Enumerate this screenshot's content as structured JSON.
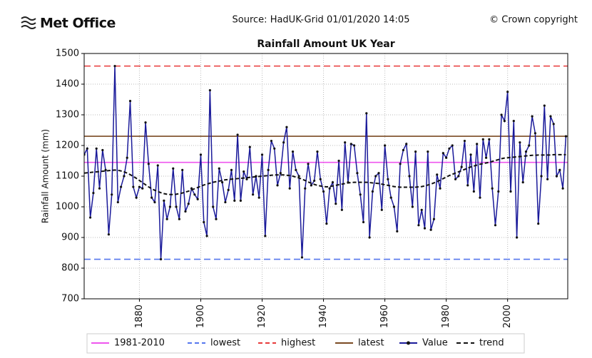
{
  "header": {
    "logo": "Met Office",
    "source": "Source: HadUK-Grid 01/01/2020 14:05",
    "copyright": "© Crown copyright"
  },
  "chart_data": {
    "type": "line",
    "title": "Rainfall Amount UK Year",
    "y_label": "Rainfall Amount (mm)",
    "xlim": [
      1862,
      2019.6
    ],
    "xticks": [
      1880,
      1900,
      1920,
      1940,
      1960,
      1980,
      2000
    ],
    "ylim": [
      700,
      1500
    ],
    "yticks": [
      700,
      800,
      900,
      1000,
      1100,
      1200,
      1300,
      1400,
      1500
    ],
    "grid": true,
    "legend": "bottom",
    "x": [
      1862,
      1863,
      1864,
      1865,
      1866,
      1867,
      1868,
      1869,
      1870,
      1871,
      1872,
      1873,
      1874,
      1875,
      1876,
      1877,
      1878,
      1879,
      1880,
      1881,
      1882,
      1883,
      1884,
      1885,
      1886,
      1887,
      1888,
      1889,
      1890,
      1891,
      1892,
      1893,
      1894,
      1895,
      1896,
      1897,
      1898,
      1899,
      1900,
      1901,
      1902,
      1903,
      1904,
      1905,
      1906,
      1907,
      1908,
      1909,
      1910,
      1911,
      1912,
      1913,
      1914,
      1915,
      1916,
      1917,
      1918,
      1919,
      1920,
      1921,
      1922,
      1923,
      1924,
      1925,
      1926,
      1927,
      1928,
      1929,
      1930,
      1931,
      1932,
      1933,
      1934,
      1935,
      1936,
      1937,
      1938,
      1939,
      1940,
      1941,
      1942,
      1943,
      1944,
      1945,
      1946,
      1947,
      1948,
      1949,
      1950,
      1951,
      1952,
      1953,
      1954,
      1955,
      1956,
      1957,
      1958,
      1959,
      1960,
      1961,
      1962,
      1963,
      1964,
      1965,
      1966,
      1967,
      1968,
      1969,
      1970,
      1971,
      1972,
      1973,
      1974,
      1975,
      1976,
      1977,
      1978,
      1979,
      1980,
      1981,
      1982,
      1983,
      1984,
      1985,
      1986,
      1987,
      1988,
      1989,
      1990,
      1991,
      1992,
      1993,
      1994,
      1995,
      1996,
      1997,
      1998,
      1999,
      2000,
      2001,
      2002,
      2003,
      2004,
      2005,
      2006,
      2007,
      2008,
      2009,
      2010,
      2011,
      2012,
      2013,
      2014,
      2015,
      2016,
      2017,
      2018,
      2019
    ],
    "series": [
      {
        "name": "1981-2010",
        "color": "#ee55ee",
        "value": 1145,
        "kind": "hline",
        "dash": false
      },
      {
        "name": "lowest",
        "color": "#5577ee",
        "value": 829,
        "kind": "hline",
        "dash": true
      },
      {
        "name": "highest",
        "color": "#e83a3a",
        "value": 1459,
        "kind": "hline",
        "dash": true
      },
      {
        "name": "latest",
        "color": "#7a4a22",
        "value": 1230,
        "kind": "hline",
        "dash": false
      },
      {
        "name": "Value",
        "color": "#1a1a9a",
        "kind": "line",
        "dash": false,
        "markers": true,
        "values": [
          1170,
          1190,
          965,
          1045,
          1190,
          1060,
          1185,
          1120,
          910,
          1040,
          1459,
          1015,
          1065,
          1100,
          1160,
          1345,
          1065,
          1030,
          1065,
          1060,
          1275,
          1140,
          1030,
          1015,
          1135,
          829,
          1020,
          960,
          1000,
          1125,
          1000,
          960,
          1120,
          985,
          1010,
          1060,
          1040,
          1025,
          1170,
          950,
          905,
          1380,
          1000,
          960,
          1125,
          1080,
          1015,
          1055,
          1120,
          1020,
          1235,
          1020,
          1115,
          1090,
          1195,
          1040,
          1100,
          1030,
          1170,
          905,
          1120,
          1215,
          1190,
          1070,
          1110,
          1210,
          1260,
          1060,
          1180,
          1120,
          1100,
          835,
          1060,
          1140,
          1070,
          1085,
          1180,
          1090,
          1050,
          945,
          1060,
          1080,
          1010,
          1150,
          990,
          1210,
          1080,
          1205,
          1200,
          1110,
          1040,
          950,
          1305,
          900,
          1050,
          1100,
          1110,
          990,
          1200,
          1090,
          1030,
          1000,
          920,
          1140,
          1185,
          1205,
          1100,
          1000,
          1180,
          940,
          990,
          930,
          1180,
          925,
          960,
          1105,
          1060,
          1175,
          1160,
          1190,
          1200,
          1090,
          1100,
          1130,
          1215,
          1070,
          1170,
          1050,
          1205,
          1030,
          1220,
          1160,
          1220,
          1060,
          940,
          1050,
          1300,
          1280,
          1375,
          1050,
          1280,
          900,
          1210,
          1080,
          1180,
          1200,
          1295,
          1240,
          945,
          1100,
          1330,
          1090,
          1295,
          1270,
          1100,
          1120,
          1060,
          1230
        ]
      },
      {
        "name": "trend",
        "color": "#111111",
        "kind": "line",
        "dash": true,
        "markers": false,
        "values": [
          1110,
          1111,
          1112,
          1113,
          1114,
          1115,
          1116,
          1117,
          1118,
          1119,
          1120,
          1119,
          1117,
          1114,
          1110,
          1105,
          1099,
          1093,
          1086,
          1079,
          1072,
          1065,
          1059,
          1054,
          1050,
          1046,
          1043,
          1041,
          1040,
          1040,
          1041,
          1043,
          1045,
          1048,
          1051,
          1055,
          1059,
          1063,
          1067,
          1071,
          1074,
          1077,
          1080,
          1082,
          1084,
          1086,
          1088,
          1089,
          1090,
          1091,
          1092,
          1093,
          1094,
          1095,
          1096,
          1097,
          1098,
          1099,
          1100,
          1101,
          1102,
          1103,
          1104,
          1104,
          1104,
          1104,
          1103,
          1102,
          1100,
          1097,
          1094,
          1090,
          1086,
          1081,
          1077,
          1073,
          1070,
          1068,
          1066,
          1065,
          1066,
          1068,
          1070,
          1072,
          1074,
          1076,
          1078,
          1079,
          1080,
          1080,
          1080,
          1080,
          1080,
          1079,
          1078,
          1077,
          1076,
          1074,
          1072,
          1070,
          1068,
          1066,
          1065,
          1064,
          1064,
          1064,
          1064,
          1064,
          1064,
          1065,
          1066,
          1068,
          1071,
          1074,
          1078,
          1082,
          1087,
          1092,
          1097,
          1102,
          1106,
          1110,
          1114,
          1118,
          1122,
          1126,
          1130,
          1133,
          1136,
          1139,
          1141,
          1143,
          1145,
          1148,
          1151,
          1154,
          1157,
          1159,
          1160,
          1161,
          1162,
          1163,
          1164,
          1165,
          1166,
          1167,
          1168,
          1168,
          1169,
          1169,
          1169,
          1169,
          1169,
          1170,
          1170,
          1170,
          1170,
          1170
        ]
      }
    ]
  }
}
